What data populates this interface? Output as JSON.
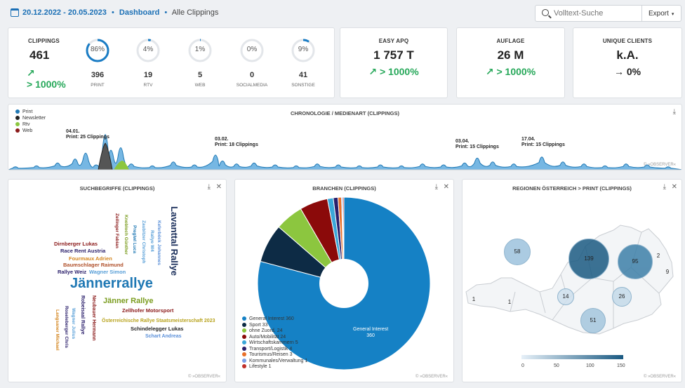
{
  "header": {
    "date_range": "20.12.2022 - 20.05.2023",
    "separator": "•",
    "dashboard": "Dashboard",
    "separator2": "•",
    "current": "Alle Clippings",
    "search_placeholder": "Volltext-Suche",
    "export_label": "Export",
    "export_caret": "▾"
  },
  "clippings": {
    "title": "CLIPPINGS",
    "value": "461",
    "trend_arrow": "↗",
    "trend": "> 1000%",
    "media": [
      {
        "pct": "86%",
        "fraction": 0.86,
        "count": "396",
        "label": "PRINT"
      },
      {
        "pct": "4%",
        "fraction": 0.04,
        "count": "19",
        "label": "RTV"
      },
      {
        "pct": "1%",
        "fraction": 0.01,
        "count": "5",
        "label": "WEB"
      },
      {
        "pct": "0%",
        "fraction": 0.0,
        "count": "0",
        "label": "SOCIALMEDIA"
      },
      {
        "pct": "9%",
        "fraction": 0.09,
        "count": "41",
        "label": "SONSTIGE"
      }
    ]
  },
  "kpis": [
    {
      "title": "EASY APQ",
      "value": "1 757 T",
      "trend": "↗ > 1000%",
      "color": "#27a85a"
    },
    {
      "title": "AUFLAGE",
      "value": "26 M",
      "trend": "↗ > 1000%",
      "color": "#27a85a"
    },
    {
      "title": "UNIQUE CLIENTS",
      "value": "k.A.",
      "trend": "→ 0%",
      "color": "#222222"
    }
  ],
  "chronology": {
    "title": "CHRONOLOGIE / MEDIENART (CLIPPINGS)",
    "legend": [
      {
        "name": "Print",
        "color": "#1f78b4"
      },
      {
        "name": "Newsletter",
        "color": "#222222"
      },
      {
        "name": "Rtv",
        "color": "#8cc63f"
      },
      {
        "name": "Web",
        "color": "#8b1a1a"
      }
    ],
    "annotations": [
      {
        "date": "04.01.",
        "text": "Print: 25 Clippings"
      },
      {
        "date": "03.02.",
        "text": "Print: 18 Clippings"
      },
      {
        "date": "03.04.",
        "text": "Print: 15 Clippings"
      },
      {
        "date": "17.04.",
        "text": "Print: 15 Clippings"
      }
    ],
    "copyright": "© »OBSERVER«"
  },
  "suchbegriffe": {
    "title": "SUCHBEGRIFFE (CLIPPINGS)",
    "copyright": "© »OBSERVER«",
    "words": [
      {
        "text": "Jännerrallye",
        "color": "#1f78b4"
      },
      {
        "text": "Lavanttal Rallye",
        "color": "#1a2e5a"
      },
      {
        "text": "Jänner Rallye",
        "color": "#7a9c1e"
      },
      {
        "text": "Dirnberger Lukas",
        "color": "#8b1a1a"
      },
      {
        "text": "Race Rent Austria",
        "color": "#2a1f6b"
      },
      {
        "text": "Fourmaux Adrien",
        "color": "#d4851e"
      },
      {
        "text": "Baumschlager Raimund",
        "color": "#b0502a"
      },
      {
        "text": "Rallye Weiz",
        "color": "#2a1f6b"
      },
      {
        "text": "Wagner Simon",
        "color": "#5aa0d8"
      },
      {
        "text": "Zellhofer Motorsport",
        "color": "#8b1a1a"
      },
      {
        "text": "Österreichische Rallye Staatsmeisterschaft 2023",
        "color": "#b8a31e"
      },
      {
        "text": "Schindelegger Lukas",
        "color": "#222222"
      },
      {
        "text": "Schart Andreas",
        "color": "#5a8fd8"
      },
      {
        "text": "Zeilinger Fabian",
        "color": "#8b1a1a"
      },
      {
        "text": "Knobloch Günther",
        "color": "#7a9c1e"
      },
      {
        "text": "Pregiwl Luca",
        "color": "#1f78b4"
      },
      {
        "text": "Zaubitzer Christoph",
        "color": "#5aa0d8"
      },
      {
        "text": "Rallye W4",
        "color": "#5aa0d8"
      },
      {
        "text": "Keferböck Johannes",
        "color": "#5a8fd8"
      },
      {
        "text": "Robeisaal Rallye",
        "color": "#2a1f6b"
      },
      {
        "text": "Neubauer Hermann",
        "color": "#8b1a1a"
      },
      {
        "text": "Wagner Julius",
        "color": "#5aa0d8"
      },
      {
        "text": "Roseleberger Chris",
        "color": "#2a1f6b"
      },
      {
        "text": "Langsaner Michael",
        "color": "#d4851e"
      }
    ]
  },
  "branchen": {
    "title": "BRANCHEN (CLIPPINGS)",
    "copyright": "© »OBSERVER«",
    "slice_label": "General Interest",
    "slice_value": "360",
    "chart_data": {
      "type": "pie",
      "categories": [
        "General Interest",
        "Sport",
        "ohne Zuord.",
        "Auto/Mobilität",
        "Wirtschaftskammern",
        "Transport/Logistik",
        "Tourismus/Reisen",
        "Kommunales/Verwaltung",
        "Lifestyle"
      ],
      "values": [
        360,
        33,
        24,
        24,
        5,
        4,
        3,
        1,
        1
      ],
      "colors": [
        "#1581c5",
        "#0d2b45",
        "#8cc63f",
        "#8b0a0a",
        "#3aa7d8",
        "#2a1f6b",
        "#e8702a",
        "#7a9ee8",
        "#c0302a"
      ],
      "legend_labels": [
        "General Interest 360",
        "Sport 33",
        "ohne Zuord. 24",
        "Auto/Mobilität 24",
        "Wirtschaftskammern 5",
        "Transport/Logistik 4",
        "Tourismus/Reisen 3",
        "Kommunales/Verwaltung 1",
        "Lifestyle 1"
      ]
    }
  },
  "regionen": {
    "title": "REGIONEN ÖSTERREICH > PRINT (CLIPPINGS)",
    "copyright": "© »OBSERVER«",
    "bubbles": [
      "58",
      "139",
      "95",
      "2",
      "9",
      "14",
      "26",
      "51",
      "1",
      "1"
    ],
    "scale": [
      "0",
      "50",
      "100",
      "150"
    ]
  }
}
